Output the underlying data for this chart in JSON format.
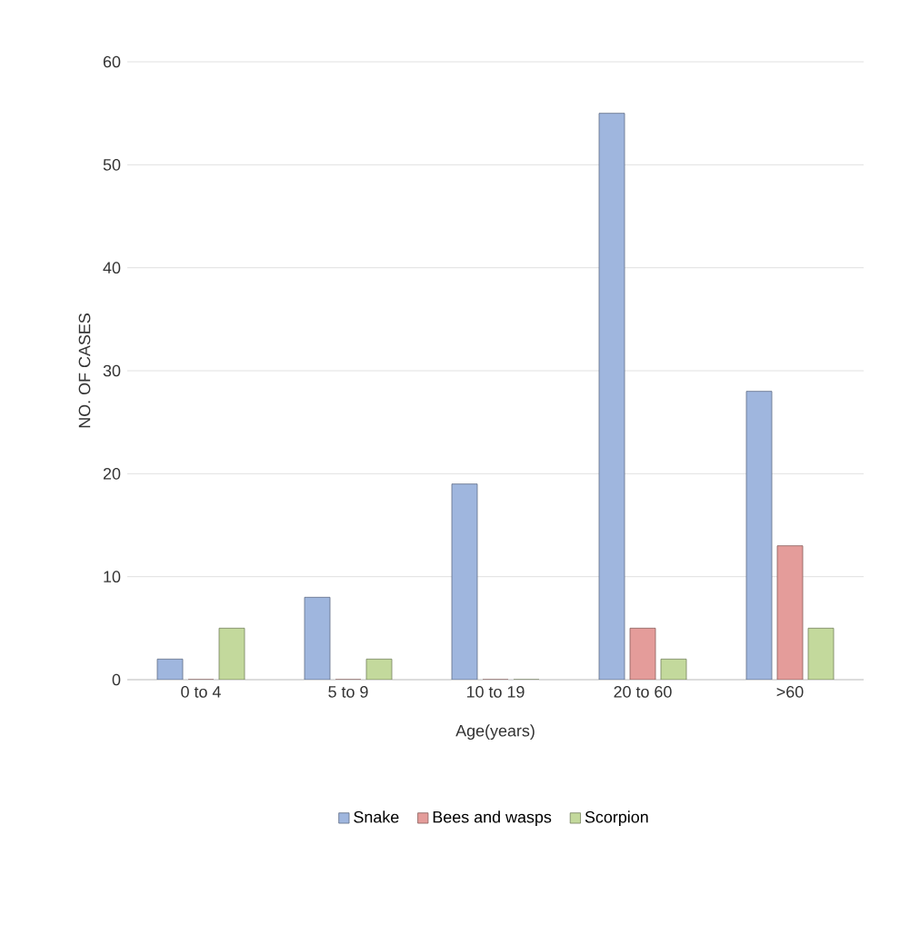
{
  "chart_data": {
    "type": "bar",
    "xlabel": "Age(years)",
    "ylabel": "NO. OF CASES",
    "categories": [
      "0 to 4",
      "5 to 9",
      "10 to 19",
      "20 to 60",
      ">60"
    ],
    "series": [
      {
        "name": "Snake",
        "color": "#9fb6de",
        "values": [
          2,
          8,
          19,
          55,
          28
        ]
      },
      {
        "name": "Bees and wasps",
        "color": "#e49c9a",
        "values": [
          0,
          0,
          0,
          5,
          13
        ]
      },
      {
        "name": "Scorpion",
        "color": "#c3d99c",
        "values": [
          5,
          2,
          0,
          2,
          5
        ]
      }
    ],
    "ylim": [
      0,
      60
    ],
    "yticks": [
      0,
      10,
      20,
      30,
      40,
      50,
      60
    ],
    "grid": "y",
    "legend": "bottom"
  }
}
